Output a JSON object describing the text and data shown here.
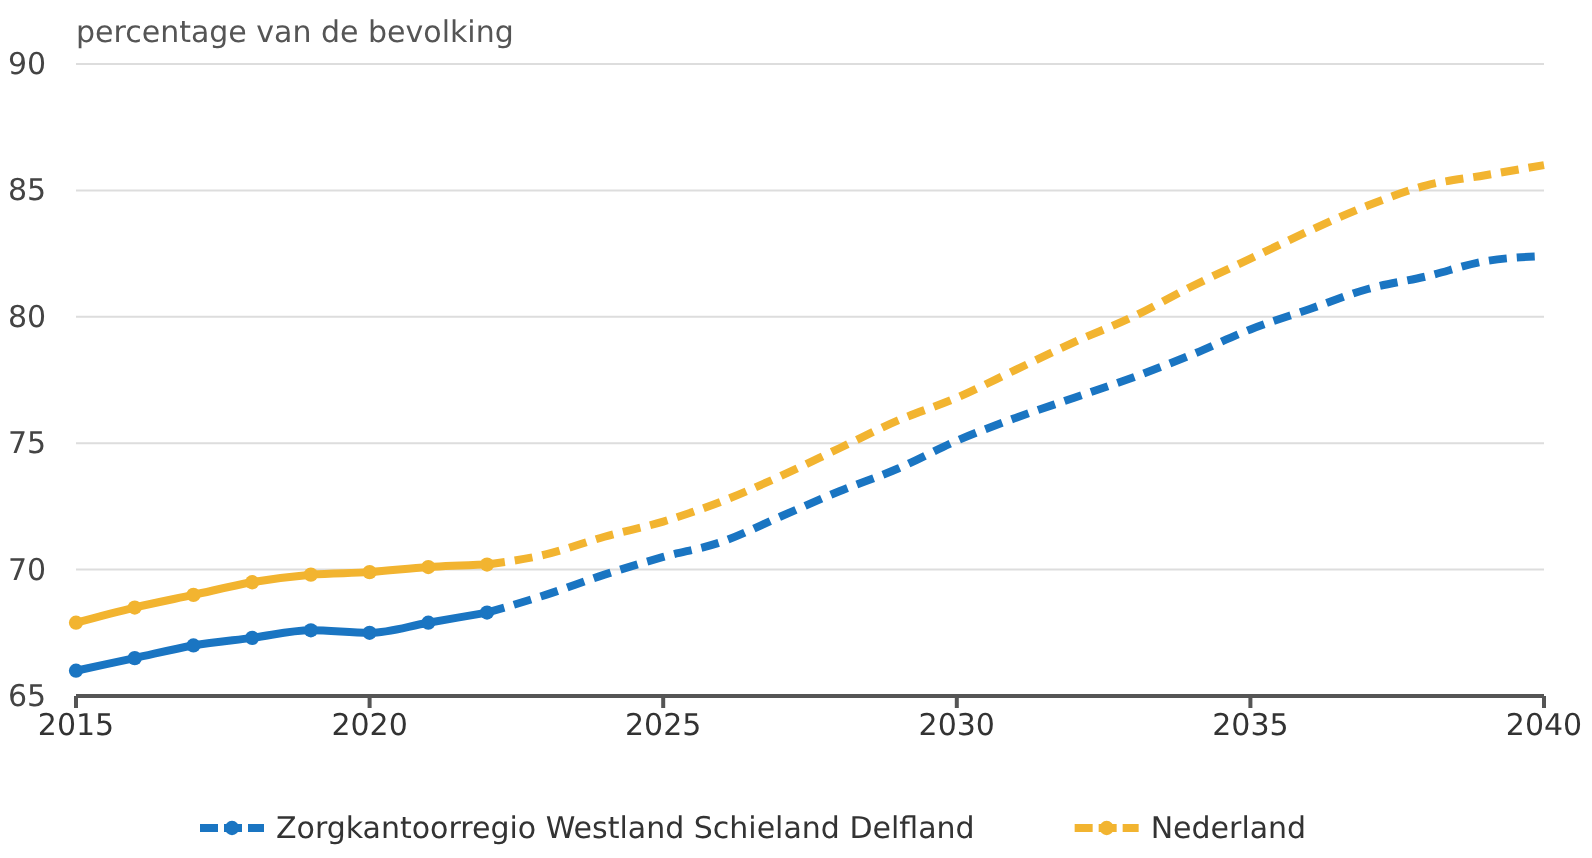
{
  "chart_data": {
    "type": "line",
    "ylabel": "percentage van de bevolking",
    "xlim": [
      2015,
      2040
    ],
    "xticks": [
      2015,
      2020,
      2025,
      2030,
      2035,
      2040
    ],
    "ylim": [
      65,
      90
    ],
    "yticks": [
      65,
      70,
      75,
      80,
      85,
      90
    ],
    "grid": "y",
    "legend": "bottom",
    "series": [
      {
        "name": "Zorgkantoorregio Westland Schieland Delfland",
        "color": "#1a75c2",
        "line_style": "solid",
        "marker": "circle",
        "x": [
          2015,
          2016,
          2017,
          2018,
          2019,
          2020,
          2021,
          2022
        ],
        "values": [
          66.0,
          66.5,
          67.0,
          67.3,
          67.6,
          67.5,
          67.9,
          68.3
        ]
      },
      {
        "color": "#1a75c2",
        "line_style": "dashed",
        "marker": "none",
        "x": [
          2022,
          2023,
          2024,
          2025,
          2026,
          2027,
          2028,
          2029,
          2030,
          2031,
          2032,
          2033,
          2034,
          2035,
          2036,
          2037,
          2038,
          2039,
          2040
        ],
        "values": [
          68.3,
          69.0,
          69.8,
          70.5,
          71.1,
          72.1,
          73.1,
          74.0,
          75.1,
          76.0,
          76.8,
          77.6,
          78.5,
          79.5,
          80.3,
          81.1,
          81.6,
          82.2,
          82.4
        ]
      },
      {
        "name": "Nederland",
        "color": "#f2b430",
        "line_style": "solid",
        "marker": "circle",
        "x": [
          2015,
          2016,
          2017,
          2018,
          2019,
          2020,
          2021,
          2022
        ],
        "values": [
          67.9,
          68.5,
          69.0,
          69.5,
          69.8,
          69.9,
          70.1,
          70.2
        ]
      },
      {
        "color": "#f2b430",
        "line_style": "dashed",
        "marker": "none",
        "x": [
          2022,
          2023,
          2024,
          2025,
          2026,
          2027,
          2028,
          2029,
          2030,
          2031,
          2032,
          2033,
          2034,
          2035,
          2036,
          2037,
          2038,
          2039,
          2040
        ],
        "values": [
          70.2,
          70.6,
          71.3,
          71.9,
          72.7,
          73.7,
          74.8,
          75.9,
          76.8,
          77.9,
          79.0,
          80.0,
          81.2,
          82.3,
          83.4,
          84.4,
          85.2,
          85.6,
          86.0
        ]
      }
    ]
  }
}
